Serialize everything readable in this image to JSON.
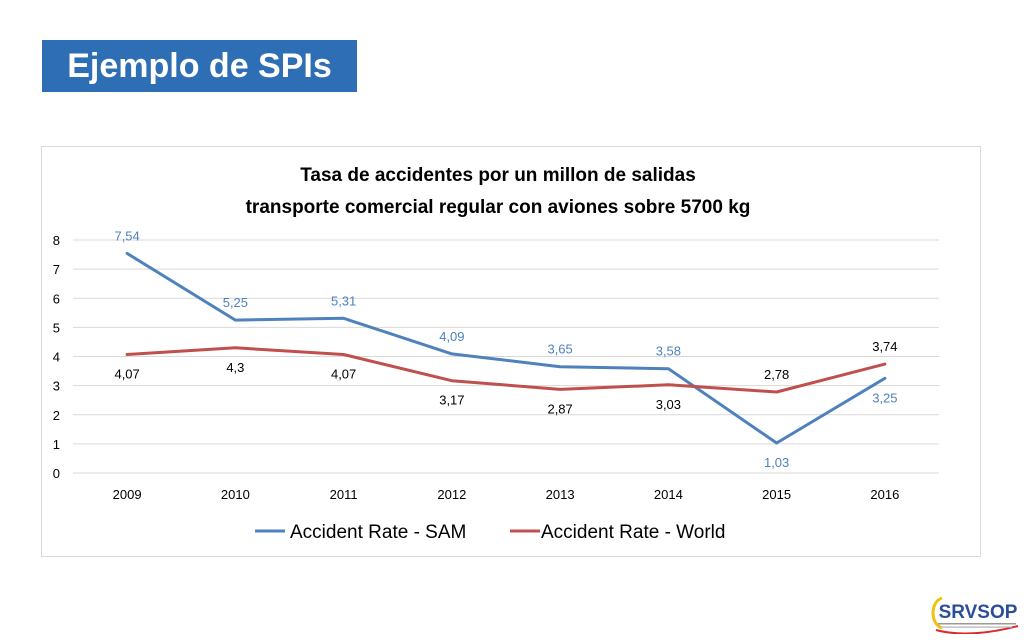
{
  "slide": {
    "title": "Ejemplo de SPIs"
  },
  "logo": {
    "text": "SRVSOP",
    "colors": {
      "main": "#2b4e9b",
      "accent": "#d92b2b",
      "ring": "#f0c20f"
    }
  },
  "chart_data": {
    "type": "line",
    "title": [
      "Tasa de accidentes por un millon de salidas",
      "transporte comercial regular con aviones sobre 5700 kg"
    ],
    "xlabel": "",
    "ylabel": "",
    "categories": [
      "2009",
      "2010",
      "2011",
      "2012",
      "2013",
      "2014",
      "2015",
      "2016"
    ],
    "ylim": [
      0,
      8
    ],
    "yticks": [
      "0",
      "1",
      "2",
      "3",
      "4",
      "5",
      "6",
      "7",
      "8"
    ],
    "grid": true,
    "legend": "bottom",
    "series": [
      {
        "name": "Accident Rate - SAM",
        "color": "#4f81bd",
        "values": [
          7.54,
          5.25,
          5.31,
          4.09,
          3.65,
          3.58,
          1.03,
          3.25
        ],
        "labels": [
          "7,54",
          "5,25",
          "5,31",
          "4,09",
          "3,65",
          "3,58",
          "1,03",
          "3,25"
        ]
      },
      {
        "name": "Accident Rate - World",
        "color": "#c0504d",
        "values": [
          4.07,
          4.3,
          4.07,
          3.17,
          2.87,
          3.03,
          2.78,
          3.74
        ],
        "labels": [
          "4,07",
          "4,3",
          "4,07",
          "3,17",
          "2,87",
          "3,03",
          "2,78",
          "3,74"
        ]
      }
    ]
  }
}
